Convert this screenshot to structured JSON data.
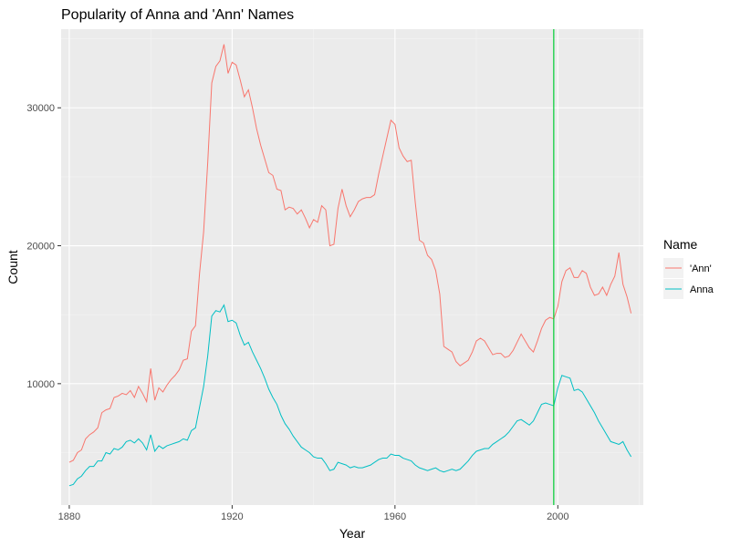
{
  "chart_data": {
    "type": "line",
    "title": "Popularity of Anna and 'Ann' Names",
    "xlabel": "Year",
    "ylabel": "Count",
    "xlim": [
      1878,
      2021
    ],
    "ylim": [
      1200,
      35700
    ],
    "x_ticks": [
      1880,
      1920,
      1960,
      2000
    ],
    "y_ticks": [
      10000,
      20000,
      30000
    ],
    "grid": true,
    "vline": {
      "x": 1999,
      "color": "#00cc33"
    },
    "legend": {
      "title": "Name",
      "position": "right",
      "entries": [
        "'Ann'",
        "Anna"
      ]
    },
    "series": [
      {
        "name": "'Ann'",
        "color": "#f8766d",
        "points": [
          [
            1880,
            4300
          ],
          [
            1881,
            4450
          ],
          [
            1882,
            5000
          ],
          [
            1883,
            5200
          ],
          [
            1884,
            6000
          ],
          [
            1885,
            6300
          ],
          [
            1886,
            6500
          ],
          [
            1887,
            6800
          ],
          [
            1888,
            7900
          ],
          [
            1889,
            8100
          ],
          [
            1890,
            8200
          ],
          [
            1891,
            9000
          ],
          [
            1892,
            9100
          ],
          [
            1893,
            9300
          ],
          [
            1894,
            9200
          ],
          [
            1895,
            9500
          ],
          [
            1896,
            9000
          ],
          [
            1897,
            9800
          ],
          [
            1898,
            9300
          ],
          [
            1899,
            8700
          ],
          [
            1900,
            11100
          ],
          [
            1901,
            8800
          ],
          [
            1902,
            9700
          ],
          [
            1903,
            9400
          ],
          [
            1904,
            9900
          ],
          [
            1905,
            10300
          ],
          [
            1906,
            10600
          ],
          [
            1907,
            11000
          ],
          [
            1908,
            11700
          ],
          [
            1909,
            11800
          ],
          [
            1910,
            13800
          ],
          [
            1911,
            14200
          ],
          [
            1912,
            18000
          ],
          [
            1913,
            21000
          ],
          [
            1914,
            26000
          ],
          [
            1915,
            31800
          ],
          [
            1916,
            33000
          ],
          [
            1917,
            33400
          ],
          [
            1918,
            34600
          ],
          [
            1919,
            32500
          ],
          [
            1920,
            33300
          ],
          [
            1921,
            33100
          ],
          [
            1922,
            32000
          ],
          [
            1923,
            30800
          ],
          [
            1924,
            31300
          ],
          [
            1925,
            30000
          ],
          [
            1926,
            28500
          ],
          [
            1927,
            27300
          ],
          [
            1928,
            26300
          ],
          [
            1929,
            25300
          ],
          [
            1930,
            25100
          ],
          [
            1931,
            24100
          ],
          [
            1932,
            24000
          ],
          [
            1933,
            22600
          ],
          [
            1934,
            22800
          ],
          [
            1935,
            22700
          ],
          [
            1936,
            22300
          ],
          [
            1937,
            22600
          ],
          [
            1938,
            22000
          ],
          [
            1939,
            21300
          ],
          [
            1940,
            21900
          ],
          [
            1941,
            21700
          ],
          [
            1942,
            22900
          ],
          [
            1943,
            22600
          ],
          [
            1944,
            20000
          ],
          [
            1945,
            20100
          ],
          [
            1946,
            22700
          ],
          [
            1947,
            24100
          ],
          [
            1948,
            22900
          ],
          [
            1949,
            22100
          ],
          [
            1950,
            22600
          ],
          [
            1951,
            23200
          ],
          [
            1952,
            23400
          ],
          [
            1953,
            23500
          ],
          [
            1954,
            23500
          ],
          [
            1955,
            23700
          ],
          [
            1956,
            25200
          ],
          [
            1957,
            26500
          ],
          [
            1958,
            27800
          ],
          [
            1959,
            29100
          ],
          [
            1960,
            28800
          ],
          [
            1961,
            27100
          ],
          [
            1962,
            26500
          ],
          [
            1963,
            26100
          ],
          [
            1964,
            26200
          ],
          [
            1965,
            23100
          ],
          [
            1966,
            20400
          ],
          [
            1967,
            20200
          ],
          [
            1968,
            19300
          ],
          [
            1969,
            19000
          ],
          [
            1970,
            18200
          ],
          [
            1971,
            16500
          ],
          [
            1972,
            12700
          ],
          [
            1973,
            12500
          ],
          [
            1974,
            12300
          ],
          [
            1975,
            11600
          ],
          [
            1976,
            11300
          ],
          [
            1977,
            11500
          ],
          [
            1978,
            11700
          ],
          [
            1979,
            12300
          ],
          [
            1980,
            13100
          ],
          [
            1981,
            13300
          ],
          [
            1982,
            13100
          ],
          [
            1983,
            12600
          ],
          [
            1984,
            12100
          ],
          [
            1985,
            12200
          ],
          [
            1986,
            12200
          ],
          [
            1987,
            11900
          ],
          [
            1988,
            12000
          ],
          [
            1989,
            12400
          ],
          [
            1990,
            13000
          ],
          [
            1991,
            13600
          ],
          [
            1992,
            13100
          ],
          [
            1993,
            12600
          ],
          [
            1994,
            12300
          ],
          [
            1995,
            13100
          ],
          [
            1996,
            14000
          ],
          [
            1997,
            14600
          ],
          [
            1998,
            14800
          ],
          [
            1999,
            14700
          ],
          [
            2000,
            15600
          ],
          [
            2001,
            17400
          ],
          [
            2002,
            18200
          ],
          [
            2003,
            18400
          ],
          [
            2004,
            17700
          ],
          [
            2005,
            17700
          ],
          [
            2006,
            18200
          ],
          [
            2007,
            18000
          ],
          [
            2008,
            17000
          ],
          [
            2009,
            16400
          ],
          [
            2010,
            16500
          ],
          [
            2011,
            17000
          ],
          [
            2012,
            16400
          ],
          [
            2013,
            17200
          ],
          [
            2014,
            17800
          ],
          [
            2015,
            19500
          ],
          [
            2016,
            17200
          ],
          [
            2017,
            16300
          ],
          [
            2018,
            15100
          ]
        ]
      },
      {
        "name": "Anna",
        "color": "#00bfc4",
        "points": [
          [
            1880,
            2600
          ],
          [
            1881,
            2700
          ],
          [
            1882,
            3100
          ],
          [
            1883,
            3300
          ],
          [
            1884,
            3700
          ],
          [
            1885,
            4000
          ],
          [
            1886,
            4000
          ],
          [
            1887,
            4400
          ],
          [
            1888,
            4400
          ],
          [
            1889,
            5000
          ],
          [
            1890,
            4900
          ],
          [
            1891,
            5300
          ],
          [
            1892,
            5200
          ],
          [
            1893,
            5400
          ],
          [
            1894,
            5800
          ],
          [
            1895,
            5900
          ],
          [
            1896,
            5700
          ],
          [
            1897,
            6000
          ],
          [
            1898,
            5700
          ],
          [
            1899,
            5200
          ],
          [
            1900,
            6300
          ],
          [
            1901,
            5100
          ],
          [
            1902,
            5500
          ],
          [
            1903,
            5300
          ],
          [
            1904,
            5500
          ],
          [
            1905,
            5600
          ],
          [
            1906,
            5700
          ],
          [
            1907,
            5800
          ],
          [
            1908,
            6000
          ],
          [
            1909,
            5900
          ],
          [
            1910,
            6600
          ],
          [
            1911,
            6800
          ],
          [
            1912,
            8300
          ],
          [
            1913,
            9800
          ],
          [
            1914,
            12000
          ],
          [
            1915,
            14900
          ],
          [
            1916,
            15300
          ],
          [
            1917,
            15200
          ],
          [
            1918,
            15700
          ],
          [
            1919,
            14500
          ],
          [
            1920,
            14600
          ],
          [
            1921,
            14400
          ],
          [
            1922,
            13500
          ],
          [
            1923,
            12800
          ],
          [
            1924,
            13000
          ],
          [
            1925,
            12300
          ],
          [
            1926,
            11700
          ],
          [
            1927,
            11100
          ],
          [
            1928,
            10400
          ],
          [
            1929,
            9600
          ],
          [
            1930,
            9000
          ],
          [
            1931,
            8500
          ],
          [
            1932,
            7700
          ],
          [
            1933,
            7100
          ],
          [
            1934,
            6700
          ],
          [
            1935,
            6200
          ],
          [
            1936,
            5800
          ],
          [
            1937,
            5400
          ],
          [
            1938,
            5200
          ],
          [
            1939,
            5000
          ],
          [
            1940,
            4700
          ],
          [
            1941,
            4600
          ],
          [
            1942,
            4600
          ],
          [
            1943,
            4200
          ],
          [
            1944,
            3700
          ],
          [
            1945,
            3800
          ],
          [
            1946,
            4300
          ],
          [
            1947,
            4200
          ],
          [
            1948,
            4100
          ],
          [
            1949,
            3900
          ],
          [
            1950,
            4000
          ],
          [
            1951,
            3900
          ],
          [
            1952,
            3900
          ],
          [
            1953,
            4000
          ],
          [
            1954,
            4100
          ],
          [
            1955,
            4300
          ],
          [
            1956,
            4500
          ],
          [
            1957,
            4600
          ],
          [
            1958,
            4600
          ],
          [
            1959,
            4900
          ],
          [
            1960,
            4800
          ],
          [
            1961,
            4800
          ],
          [
            1962,
            4600
          ],
          [
            1963,
            4500
          ],
          [
            1964,
            4400
          ],
          [
            1965,
            4100
          ],
          [
            1966,
            3900
          ],
          [
            1967,
            3800
          ],
          [
            1968,
            3700
          ],
          [
            1969,
            3800
          ],
          [
            1970,
            3900
          ],
          [
            1971,
            3700
          ],
          [
            1972,
            3600
          ],
          [
            1973,
            3700
          ],
          [
            1974,
            3800
          ],
          [
            1975,
            3700
          ],
          [
            1976,
            3800
          ],
          [
            1977,
            4100
          ],
          [
            1978,
            4400
          ],
          [
            1979,
            4800
          ],
          [
            1980,
            5100
          ],
          [
            1981,
            5200
          ],
          [
            1982,
            5300
          ],
          [
            1983,
            5300
          ],
          [
            1984,
            5600
          ],
          [
            1985,
            5800
          ],
          [
            1986,
            6000
          ],
          [
            1987,
            6200
          ],
          [
            1988,
            6500
          ],
          [
            1989,
            6900
          ],
          [
            1990,
            7300
          ],
          [
            1991,
            7400
          ],
          [
            1992,
            7200
          ],
          [
            1993,
            7000
          ],
          [
            1994,
            7300
          ],
          [
            1995,
            7900
          ],
          [
            1996,
            8500
          ],
          [
            1997,
            8600
          ],
          [
            1998,
            8500
          ],
          [
            1999,
            8400
          ],
          [
            2000,
            9700
          ],
          [
            2001,
            10600
          ],
          [
            2002,
            10500
          ],
          [
            2003,
            10400
          ],
          [
            2004,
            9500
          ],
          [
            2005,
            9600
          ],
          [
            2006,
            9400
          ],
          [
            2007,
            8900
          ],
          [
            2008,
            8400
          ],
          [
            2009,
            7900
          ],
          [
            2010,
            7300
          ],
          [
            2011,
            6800
          ],
          [
            2012,
            6300
          ],
          [
            2013,
            5800
          ],
          [
            2014,
            5700
          ],
          [
            2015,
            5600
          ],
          [
            2016,
            5800
          ],
          [
            2017,
            5200
          ],
          [
            2018,
            4700
          ]
        ]
      }
    ]
  }
}
